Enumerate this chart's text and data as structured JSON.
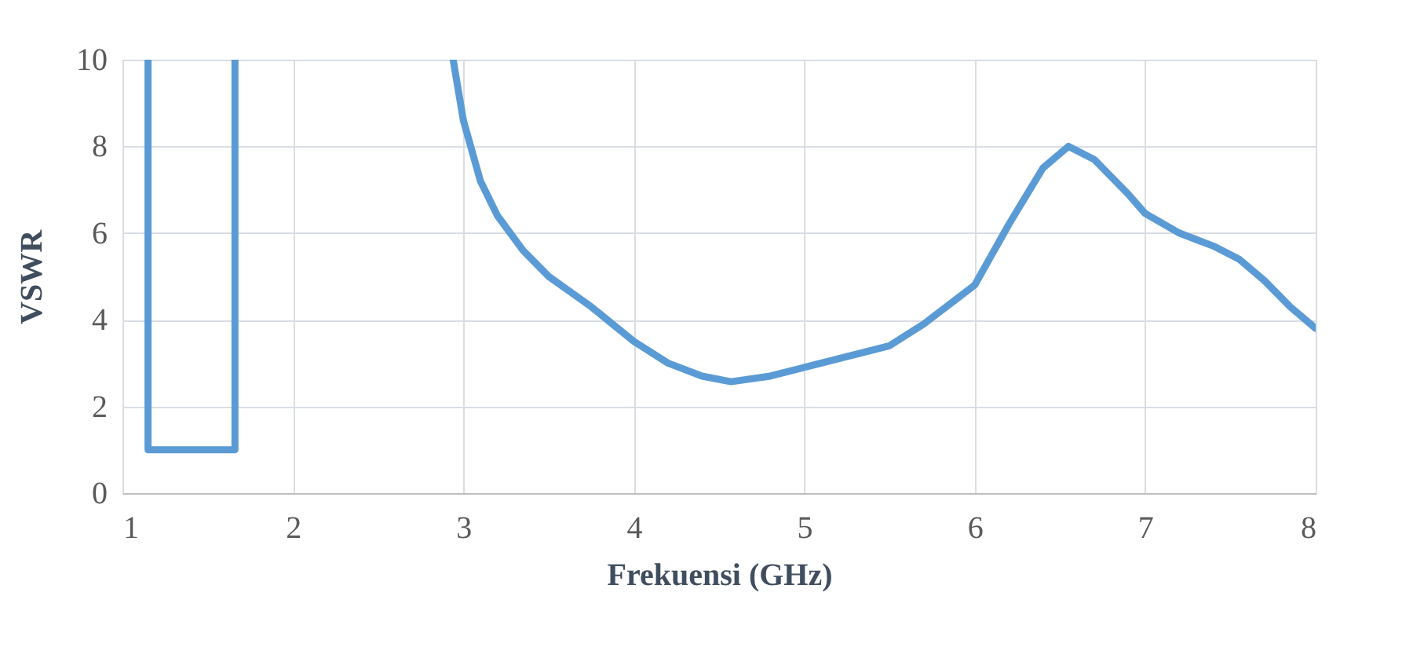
{
  "chart_data": {
    "type": "line",
    "xlabel": "Frekuensi (GHz)",
    "ylabel": "VSWR",
    "x": [
      1.15,
      1.15,
      1.66,
      1.66,
      2.3,
      2.94,
      3.0,
      3.1,
      3.2,
      3.35,
      3.5,
      3.75,
      4.0,
      4.2,
      4.4,
      4.57,
      4.8,
      5.0,
      5.2,
      5.5,
      5.7,
      5.9,
      6.0,
      6.2,
      6.4,
      6.55,
      6.7,
      6.9,
      7.0,
      7.2,
      7.4,
      7.55,
      7.7,
      7.85,
      8.0
    ],
    "series": [
      {
        "color": "#5b9bd5",
        "values": [
          10,
          1,
          1,
          10,
          null,
          10,
          8.6,
          7.2,
          6.4,
          5.6,
          5.0,
          4.3,
          3.5,
          3.0,
          2.7,
          2.57,
          2.7,
          2.9,
          3.1,
          3.4,
          3.9,
          4.5,
          4.8,
          6.2,
          7.5,
          8.0,
          7.7,
          6.9,
          6.45,
          6.0,
          5.7,
          5.4,
          4.9,
          4.3,
          3.8
        ]
      }
    ],
    "xlim": [
      1,
      8
    ],
    "xticks": [
      1,
      2,
      3,
      4,
      5,
      6,
      7,
      8
    ],
    "ylim": [
      0,
      10
    ],
    "yticks": [
      0,
      2,
      4,
      6,
      8,
      10
    ],
    "grid": true,
    "legend": false,
    "marker": "none",
    "line_style": "solid"
  }
}
